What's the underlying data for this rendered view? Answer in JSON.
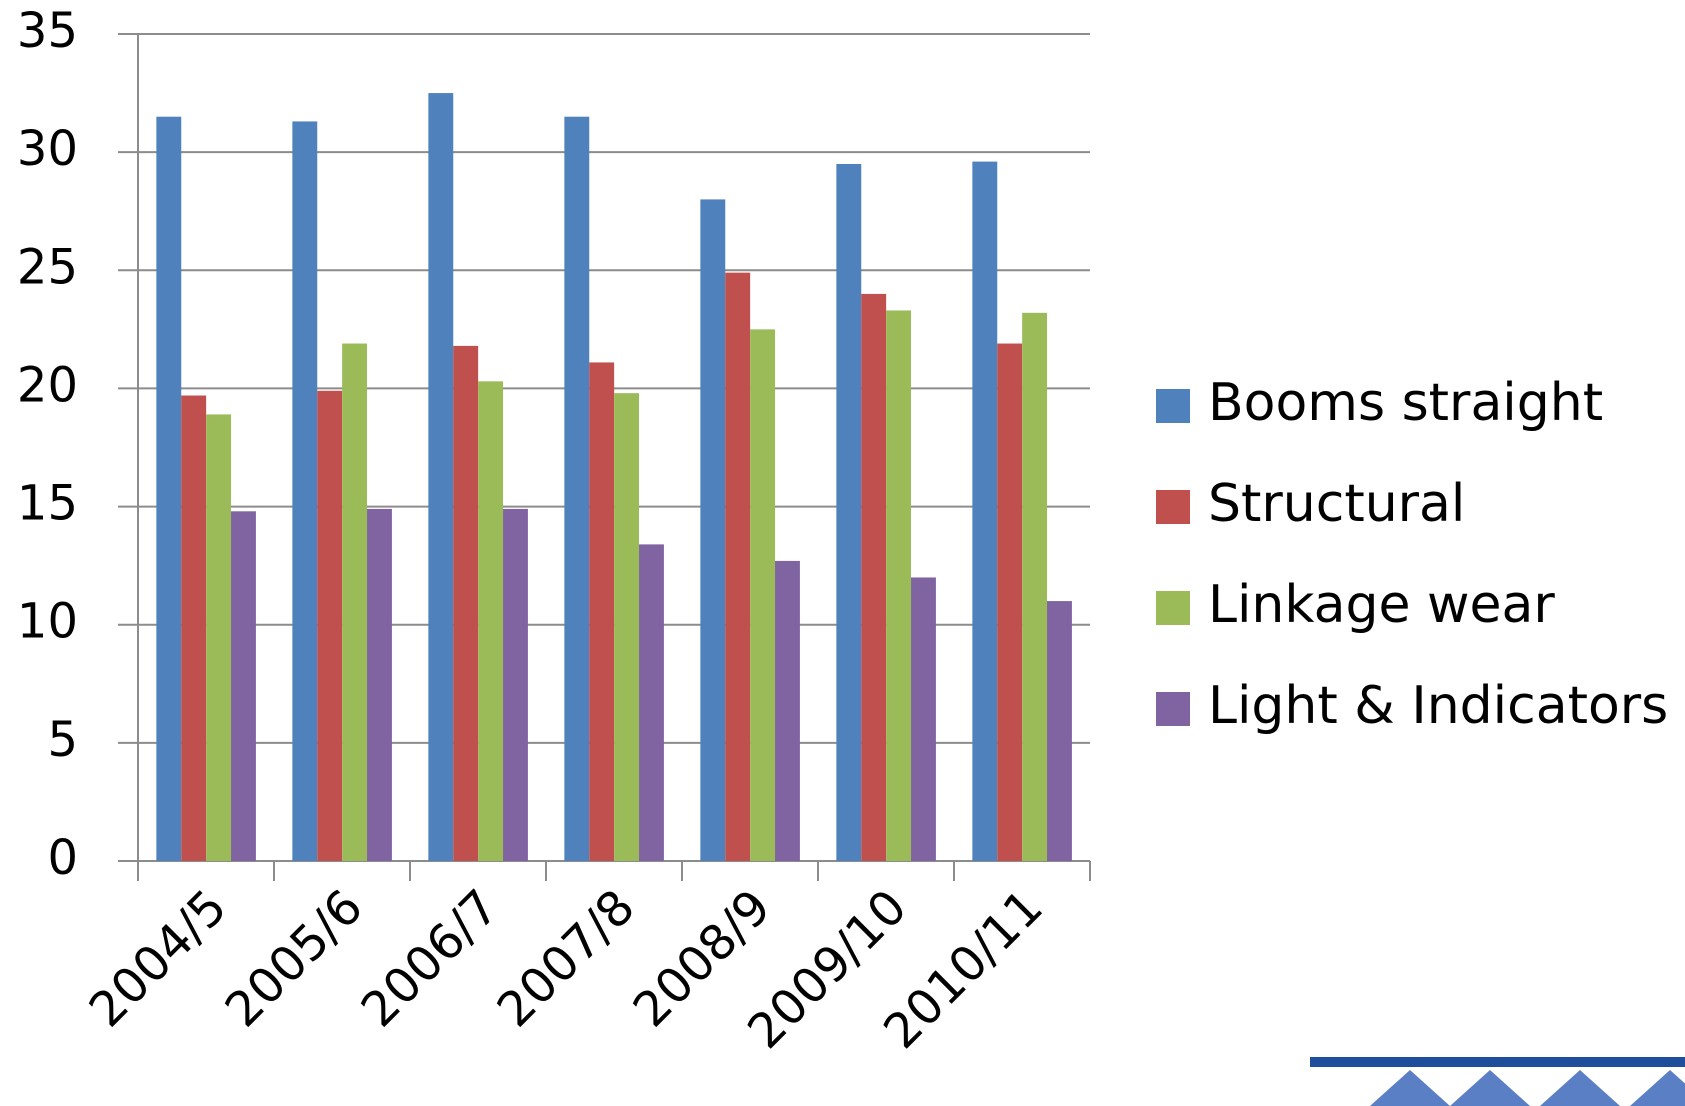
{
  "chart_data": {
    "type": "bar",
    "categories": [
      "2004/5",
      "2005/6",
      "2006/7",
      "2007/8",
      "2008/9",
      "2009/10",
      "2010/11"
    ],
    "series": [
      {
        "name": "Booms straight",
        "color": "#4f81bd",
        "values": [
          31.5,
          31.3,
          32.5,
          31.5,
          28.0,
          29.5,
          29.6
        ]
      },
      {
        "name": "Structural",
        "color": "#c0504d",
        "values": [
          19.7,
          19.9,
          21.8,
          21.1,
          24.9,
          24.0,
          21.9
        ]
      },
      {
        "name": "Linkage wear",
        "color": "#9bbb59",
        "values": [
          18.9,
          21.9,
          20.3,
          19.8,
          22.5,
          23.3,
          23.2
        ]
      },
      {
        "name": "Light & Indicators",
        "color": "#8064a2",
        "values": [
          14.8,
          14.9,
          14.9,
          13.4,
          12.7,
          12.0,
          11.0
        ]
      }
    ],
    "ylim": [
      0,
      35
    ],
    "yticks": [
      0,
      5,
      10,
      15,
      20,
      25,
      30,
      35
    ],
    "grid": true,
    "legend": "right"
  }
}
